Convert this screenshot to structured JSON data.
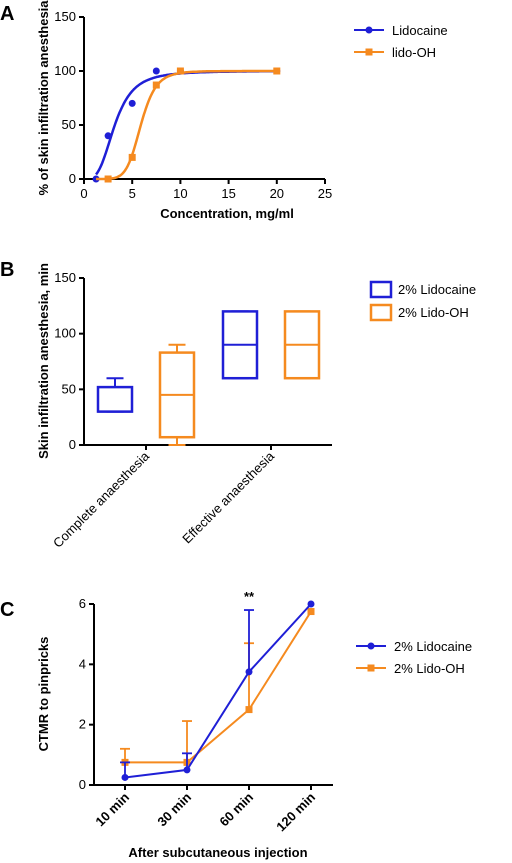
{
  "colors": {
    "blue": "#1f1fd6",
    "orange": "#f58a1f",
    "axis": "#000000"
  },
  "chart_data": [
    {
      "panel": "A",
      "type": "scatter",
      "xlabel": "Concentration, mg/ml",
      "ylabel": "% of skin infiltration anesthesia",
      "xlim": [
        0,
        25
      ],
      "ylim": [
        0,
        150
      ],
      "x_ticks": [
        "0",
        "5",
        "10",
        "15",
        "20",
        "25"
      ],
      "y_ticks": [
        "0",
        "50",
        "100",
        "150"
      ],
      "legend_position": "top-right",
      "series": [
        {
          "name": "Lidocaine",
          "color": "#1f1fd6",
          "marker": "circle",
          "x": [
            1.25,
            2.5,
            5,
            7.5,
            10,
            20
          ],
          "y": [
            0,
            40,
            70,
            100,
            100,
            100
          ],
          "fit": {
            "type": "sigmoid",
            "ec50": 3.2,
            "hill": 3.3,
            "top": 100
          }
        },
        {
          "name": "lido-OH",
          "color": "#f58a1f",
          "marker": "square",
          "x": [
            2.5,
            5,
            7.5,
            10,
            20
          ],
          "y": [
            0,
            20,
            87,
            100,
            100
          ],
          "fit": {
            "type": "sigmoid",
            "ec50": 5.9,
            "hill": 7.5,
            "top": 100
          }
        }
      ]
    },
    {
      "panel": "B",
      "type": "box",
      "ylabel": "Skin infiltration anesthesia, min",
      "ylim": [
        0,
        150
      ],
      "y_ticks": [
        "0",
        "50",
        "100",
        "150"
      ],
      "categories": [
        "Complete anaesthesia",
        "Effective anaesthesia"
      ],
      "legend_position": "top-right",
      "series": [
        {
          "name": "2% Lidocaine",
          "color": "#1f1fd6",
          "boxes": [
            {
              "min": 30,
              "q1": 30,
              "median": 30,
              "q3": 52,
              "max": 60
            },
            {
              "min": 60,
              "q1": 60,
              "median": 90,
              "q3": 120,
              "max": 120
            }
          ]
        },
        {
          "name": "2% Lido-OH",
          "color": "#f58a1f",
          "boxes": [
            {
              "min": 0,
              "q1": 7,
              "median": 45,
              "q3": 83,
              "max": 90
            },
            {
              "min": 60,
              "q1": 60,
              "median": 90,
              "q3": 120,
              "max": 120
            }
          ]
        }
      ]
    },
    {
      "panel": "C",
      "type": "line",
      "xlabel": "After subcutaneous injection",
      "ylabel": "CTMR to pinpricks",
      "ylim": [
        0,
        6
      ],
      "y_ticks": [
        "0",
        "2",
        "4",
        "6"
      ],
      "categories": [
        "10 min",
        "30 min",
        "60 min",
        "120 min"
      ],
      "annotation": "**",
      "annotation_category": "60 min",
      "legend_position": "top-right",
      "series": [
        {
          "name": "2% Lidocaine",
          "color": "#1f1fd6",
          "marker": "circle",
          "values": [
            0.25,
            0.5,
            3.75,
            6.0
          ],
          "error_upper": [
            0.75,
            1.05,
            5.8,
            6.0
          ]
        },
        {
          "name": "2% Lido-OH",
          "color": "#f58a1f",
          "marker": "square",
          "values": [
            0.75,
            0.75,
            2.5,
            5.75
          ],
          "error_upper": [
            1.2,
            2.12,
            4.7,
            5.75
          ]
        }
      ]
    }
  ]
}
